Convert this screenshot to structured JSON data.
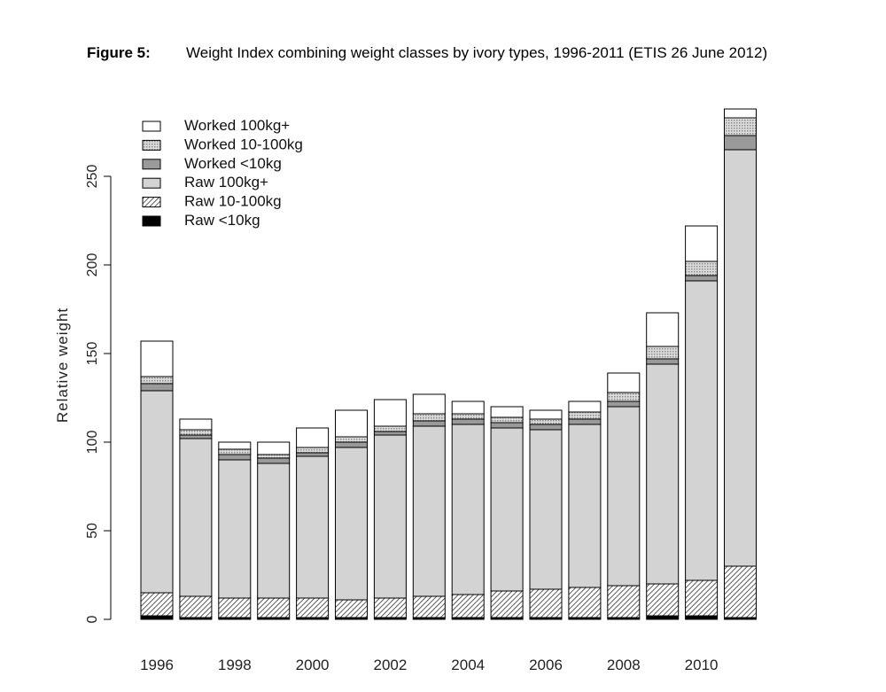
{
  "figure": {
    "label": "Figure 5:",
    "title": "Weight Index combining weight classes by ivory types, 1996-2011 (ETIS 26 June 2012)"
  },
  "chart_data": {
    "type": "bar",
    "stacked": true,
    "ylabel": "Relative weight",
    "xlabel": "",
    "ylim": [
      0,
      290
    ],
    "yticks": [
      0,
      50,
      100,
      150,
      200,
      250
    ],
    "categories": [
      "1996",
      "1997",
      "1998",
      "1999",
      "2000",
      "2001",
      "2002",
      "2003",
      "2004",
      "2005",
      "2006",
      "2007",
      "2008",
      "2009",
      "2010",
      "2011"
    ],
    "x_tick_labels": [
      "1996",
      "1998",
      "2000",
      "2002",
      "2004",
      "2006",
      "2008",
      "2010"
    ],
    "legend_position": "top-left",
    "grid": false,
    "series": [
      {
        "name": "Raw <10kg",
        "fill": "solid-black",
        "values": [
          2,
          1,
          1,
          1,
          1,
          1,
          1,
          1,
          1,
          1,
          1,
          1,
          1,
          2,
          2,
          1
        ]
      },
      {
        "name": "Raw 10-100kg",
        "fill": "hatched",
        "values": [
          13,
          12,
          11,
          11,
          11,
          10,
          11,
          12,
          13,
          15,
          16,
          17,
          18,
          18,
          20,
          29
        ]
      },
      {
        "name": "Raw 100kg+",
        "fill": "light-grey",
        "values": [
          114,
          89,
          78,
          76,
          80,
          86,
          92,
          96,
          96,
          92,
          90,
          92,
          101,
          124,
          169,
          235
        ]
      },
      {
        "name": "Worked <10kg",
        "fill": "dark-grey",
        "values": [
          4,
          2,
          3,
          3,
          2,
          3,
          2,
          3,
          3,
          3,
          3,
          3,
          3,
          3,
          3,
          8
        ]
      },
      {
        "name": "Worked 10-100kg",
        "fill": "dotted",
        "values": [
          4,
          3,
          3,
          2,
          3,
          3,
          3,
          4,
          3,
          3,
          3,
          4,
          5,
          7,
          8,
          10
        ]
      },
      {
        "name": "Worked 100kg+",
        "fill": "white",
        "values": [
          20,
          6,
          4,
          7,
          11,
          15,
          15,
          11,
          7,
          6,
          5,
          6,
          11,
          19,
          20,
          5
        ]
      }
    ]
  }
}
